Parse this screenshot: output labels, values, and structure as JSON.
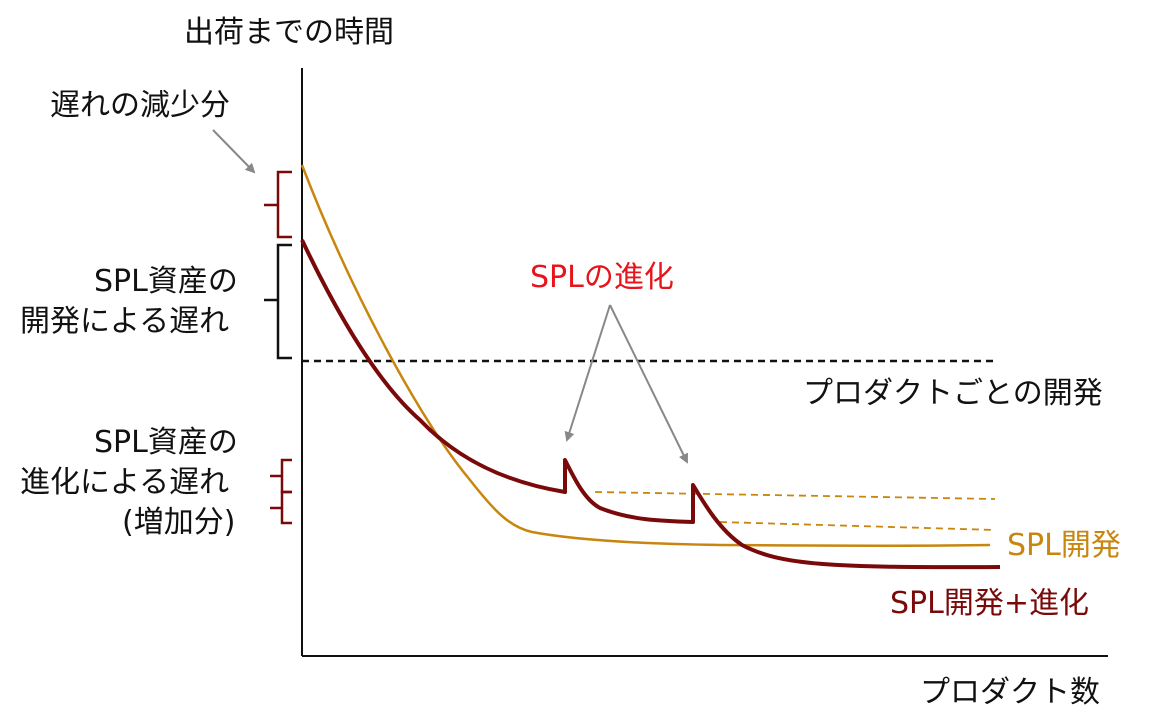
{
  "y_axis_label": "出荷までの時間",
  "x_axis_label": "プロダクト数",
  "annotations": {
    "delay_reduction": "遅れの減少分",
    "spl_asset_delay": [
      "SPL資産の",
      "開発による遅れ"
    ],
    "spl_evolution_delay": [
      "SPL資産の",
      "進化による遅れ",
      "(増加分)"
    ],
    "spl_evolution": "SPLの進化"
  },
  "series_labels": {
    "per_product": "プロダクトごとの開発",
    "spl": "SPL開発",
    "spl_evolution": "SPL開発+進化"
  },
  "colors": {
    "axis": "#111111",
    "per_product": "#111111",
    "spl": "#C9860F",
    "spl_evolution": "#7A0A0A",
    "evolution_label": "#E8141B",
    "bracket": "#7A0A0A",
    "arrow": "#888888"
  }
}
